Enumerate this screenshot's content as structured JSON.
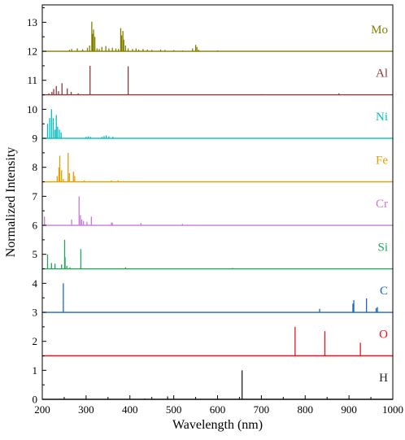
{
  "chart_data": {
    "type": "line",
    "xlabel": "Wavelength (nm)",
    "ylabel": "Normalized Intensity",
    "xlim": [
      200,
      1000
    ],
    "ylim": [
      0,
      13.6
    ],
    "xticks": [
      200,
      300,
      400,
      500,
      600,
      700,
      800,
      900,
      1000
    ],
    "yticks": [
      0,
      1,
      2,
      3,
      4,
      5,
      6,
      7,
      8,
      9,
      10,
      11,
      12,
      13
    ],
    "grid": false,
    "legend": "series labels at right end of each baseline",
    "series": [
      {
        "name": "Mo",
        "color": "#808000",
        "baseline": 12,
        "peaks": [
          [
            262,
            12.05
          ],
          [
            267,
            12.08
          ],
          [
            280,
            12.1
          ],
          [
            292,
            12.07
          ],
          [
            303,
            12.12
          ],
          [
            308,
            12.2
          ],
          [
            313,
            13.02
          ],
          [
            315,
            12.6
          ],
          [
            317,
            12.75
          ],
          [
            320,
            12.5
          ],
          [
            325,
            12.1
          ],
          [
            330,
            12.08
          ],
          [
            336,
            12.15
          ],
          [
            345,
            12.18
          ],
          [
            352,
            12.1
          ],
          [
            360,
            12.12
          ],
          [
            368,
            12.1
          ],
          [
            374,
            12.08
          ],
          [
            379,
            12.8
          ],
          [
            381,
            12.55
          ],
          [
            384,
            12.7
          ],
          [
            386,
            12.4
          ],
          [
            390,
            12.2
          ],
          [
            396,
            12.1
          ],
          [
            406,
            12.08
          ],
          [
            414,
            12.1
          ],
          [
            420,
            12.06
          ],
          [
            430,
            12.08
          ],
          [
            440,
            12.06
          ],
          [
            450,
            12.05
          ],
          [
            470,
            12.06
          ],
          [
            480,
            12.05
          ],
          [
            500,
            12.04
          ],
          [
            520,
            12.03
          ],
          [
            543,
            12.1
          ],
          [
            550,
            12.22
          ],
          [
            553,
            12.15
          ],
          [
            557,
            12.05
          ],
          [
            600,
            12.03
          ]
        ]
      },
      {
        "name": "Al",
        "color": "#8b3a3a",
        "baseline": 10.5,
        "peaks": [
          [
            215,
            10.55
          ],
          [
            222,
            10.6
          ],
          [
            226,
            10.7
          ],
          [
            232,
            10.8
          ],
          [
            237,
            10.62
          ],
          [
            245,
            10.9
          ],
          [
            257,
            10.72
          ],
          [
            266,
            10.6
          ],
          [
            282,
            10.55
          ],
          [
            309,
            11.5
          ],
          [
            396,
            11.48
          ],
          [
            700,
            10.52
          ],
          [
            877,
            10.55
          ]
        ]
      },
      {
        "name": "Ni",
        "color": "#00bfc4",
        "baseline": 9,
        "peaks": [
          [
            212,
            9.5
          ],
          [
            217,
            9.7
          ],
          [
            221,
            10.0
          ],
          [
            225,
            9.7
          ],
          [
            229,
            9.3
          ],
          [
            232,
            9.8
          ],
          [
            235,
            9.4
          ],
          [
            239,
            9.3
          ],
          [
            243,
            9.2
          ],
          [
            300,
            9.05
          ],
          [
            305,
            9.07
          ],
          [
            310,
            9.05
          ],
          [
            336,
            9.05
          ],
          [
            341,
            9.08
          ],
          [
            346,
            9.1
          ],
          [
            352,
            9.07
          ],
          [
            361,
            9.05
          ]
        ]
      },
      {
        "name": "Fe",
        "color": "#e69f00",
        "baseline": 7.5,
        "peaks": [
          [
            234,
            7.7
          ],
          [
            238,
            8.0
          ],
          [
            240,
            8.4
          ],
          [
            244,
            7.9
          ],
          [
            248,
            7.6
          ],
          [
            259,
            8.5
          ],
          [
            262,
            7.8
          ],
          [
            271,
            7.85
          ],
          [
            274,
            7.7
          ],
          [
            296,
            7.55
          ],
          [
            358,
            7.55
          ],
          [
            373,
            7.55
          ],
          [
            385,
            7.52
          ]
        ]
      },
      {
        "name": "Cr",
        "color": "#c77cdb",
        "baseline": 6,
        "peaks": [
          [
            205,
            6.3
          ],
          [
            267,
            6.2
          ],
          [
            284,
            7.0
          ],
          [
            287,
            6.35
          ],
          [
            290,
            6.2
          ],
          [
            294,
            6.15
          ],
          [
            302,
            6.12
          ],
          [
            312,
            6.3
          ],
          [
            358,
            6.1
          ],
          [
            360,
            6.08
          ],
          [
            425,
            6.08
          ],
          [
            520,
            6.05
          ]
        ]
      },
      {
        "name": "Si",
        "color": "#22a45d",
        "baseline": 4.5,
        "peaks": [
          [
            212,
            5.0
          ],
          [
            221,
            4.7
          ],
          [
            229,
            4.68
          ],
          [
            244,
            4.65
          ],
          [
            251,
            5.5
          ],
          [
            252,
            4.9
          ],
          [
            256,
            4.6
          ],
          [
            263,
            4.55
          ],
          [
            288,
            5.18
          ],
          [
            390,
            4.55
          ],
          [
            634,
            4.53
          ]
        ]
      },
      {
        "name": "C",
        "color": "#1a66c8",
        "baseline": 3,
        "peaks": [
          [
            248,
            4.0
          ],
          [
            833,
            3.12
          ],
          [
            909,
            3.3
          ],
          [
            911,
            3.42
          ],
          [
            940,
            3.48
          ],
          [
            962,
            3.15
          ],
          [
            965,
            3.18
          ]
        ]
      },
      {
        "name": "O",
        "color": "#e8141b",
        "baseline": 1.5,
        "peaks": [
          [
            777,
            2.5
          ],
          [
            845,
            2.35
          ],
          [
            926,
            1.95
          ]
        ]
      },
      {
        "name": "H",
        "color": "#222222",
        "baseline": 0,
        "peaks": [
          [
            434,
            0.03
          ],
          [
            486,
            0.1
          ],
          [
            656,
            1.0
          ]
        ]
      }
    ]
  }
}
